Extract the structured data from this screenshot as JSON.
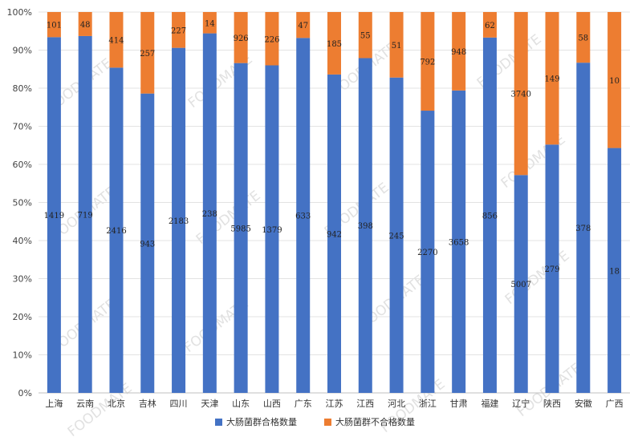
{
  "chart_data": {
    "type": "bar",
    "stacked": true,
    "categories": [
      "上海",
      "云南",
      "北京",
      "吉林",
      "四川",
      "天津",
      "山东",
      "山西",
      "广东",
      "江苏",
      "江西",
      "河北",
      "浙江",
      "甘肃",
      "福建",
      "辽宁",
      "陕西",
      "安徽",
      "广西"
    ],
    "series": [
      {
        "name": "大肠菌群合格数量",
        "color": "#4472C4",
        "percent": [
          93.4,
          93.7,
          85.4,
          78.6,
          90.6,
          94.4,
          86.6,
          86.0,
          93.2,
          83.6,
          87.9,
          82.8,
          74.1,
          79.4,
          93.3,
          57.2,
          65.2,
          86.7,
          64.3
        ],
        "labels": [
          "1419",
          "719",
          "2416",
          "943",
          "2183",
          "238",
          "5985",
          "1379",
          "633",
          "942",
          "398",
          "245",
          "2270",
          "3658",
          "856",
          "5007",
          "279",
          "378",
          "18"
        ]
      },
      {
        "name": "大肠菌群不合格数量",
        "color": "#ED7D31",
        "percent": [
          6.6,
          6.3,
          14.6,
          21.4,
          9.4,
          5.6,
          13.4,
          14.0,
          6.8,
          16.4,
          12.1,
          17.2,
          25.9,
          20.6,
          6.7,
          42.8,
          34.8,
          13.3,
          35.7
        ],
        "labels": [
          "101",
          "48",
          "414",
          "257",
          "227",
          "14",
          "926",
          "226",
          "47",
          "185",
          "55",
          "51",
          "792",
          "948",
          "62",
          "3740",
          "149",
          "58",
          "10"
        ]
      }
    ],
    "y_ticks": [
      "0%",
      "10%",
      "20%",
      "30%",
      "40%",
      "50%",
      "60%",
      "70%",
      "80%",
      "90%",
      "100%"
    ],
    "ylim": [
      0,
      100
    ],
    "grid": true,
    "legend_position": "bottom"
  },
  "watermark": "FOODMATE"
}
